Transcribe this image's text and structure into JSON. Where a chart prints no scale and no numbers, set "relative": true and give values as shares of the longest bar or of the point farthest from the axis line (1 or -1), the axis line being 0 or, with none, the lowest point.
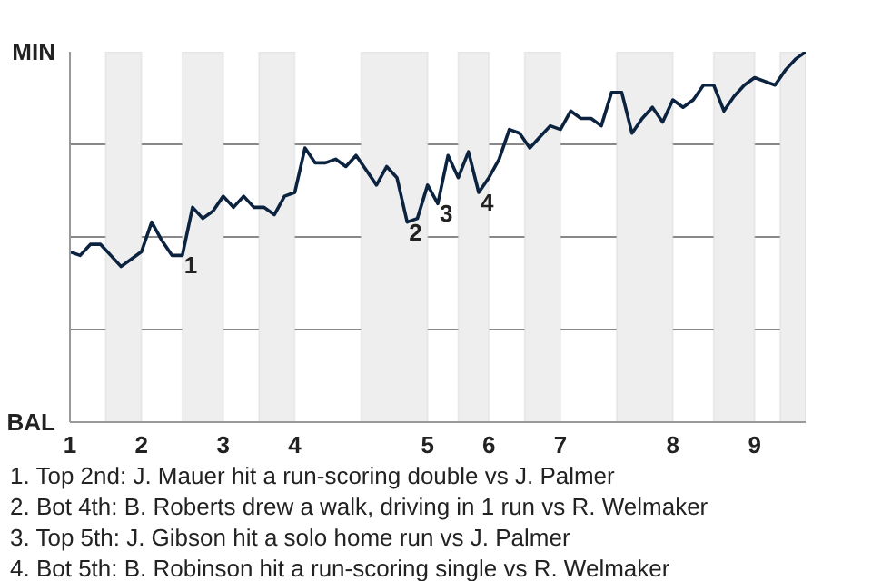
{
  "chart_data": {
    "type": "line",
    "relative": true,
    "categories": [
      "1",
      null,
      null,
      null,
      null,
      null,
      null,
      "2",
      null,
      null,
      null,
      null,
      null,
      null,
      null,
      "3",
      null,
      null,
      null,
      null,
      null,
      null,
      "4",
      null,
      null,
      null,
      null,
      null,
      null,
      null,
      null,
      null,
      null,
      null,
      null,
      "5",
      null,
      null,
      null,
      null,
      null,
      "6",
      null,
      null,
      null,
      null,
      null,
      null,
      "7",
      null,
      null,
      null,
      null,
      null,
      null,
      null,
      null,
      null,
      null,
      "8",
      null,
      null,
      null,
      null,
      null,
      null,
      null,
      "9",
      null,
      null,
      null,
      null,
      null
    ],
    "grid": "y",
    "marker": "none",
    "line_style": "solid",
    "series": [
      {
        "color": "#0c2340",
        "values": [
          0.46,
          0.45,
          0.48,
          0.48,
          0.45,
          0.42,
          0.44,
          0.46,
          0.54,
          0.49,
          0.45,
          0.45,
          0.58,
          0.55,
          0.57,
          0.61,
          0.58,
          0.61,
          0.58,
          0.58,
          0.56,
          0.61,
          0.62,
          0.74,
          0.7,
          0.7,
          0.71,
          0.69,
          0.72,
          0.68,
          0.64,
          0.69,
          0.66,
          0.54,
          0.55,
          0.64,
          0.59,
          0.72,
          0.66,
          0.73,
          0.62,
          0.66,
          0.71,
          0.79,
          0.78,
          0.74,
          0.77,
          0.8,
          0.79,
          0.84,
          0.82,
          0.82,
          0.8,
          0.89,
          0.89,
          0.78,
          0.82,
          0.85,
          0.81,
          0.87,
          0.85,
          0.87,
          0.91,
          0.91,
          0.84,
          0.88,
          0.91,
          0.93,
          0.92,
          0.91,
          0.95,
          0.98,
          1
        ]
      }
    ],
    "annotations": [
      "MIN",
      "BAL",
      {
        "text": "1",
        "y": 0.45
      },
      {
        "text": "2",
        "y": 0.54
      },
      {
        "text": "3",
        "y": 0.59
      },
      {
        "text": "4",
        "y": 0.62
      },
      "1. Top 2nd: J. Mauer hit a run-scoring double vs J. Palmer",
      "2. Bot 4th: B. Roberts drew a walk, driving in 1 run vs R. Welmaker",
      "3. Top 5th: J. Gibson hit a solo home run vs J. Palmer",
      "4. Bot 5th: B. Robinson hit a run-scoring single vs R. Welmaker"
    ]
  }
}
